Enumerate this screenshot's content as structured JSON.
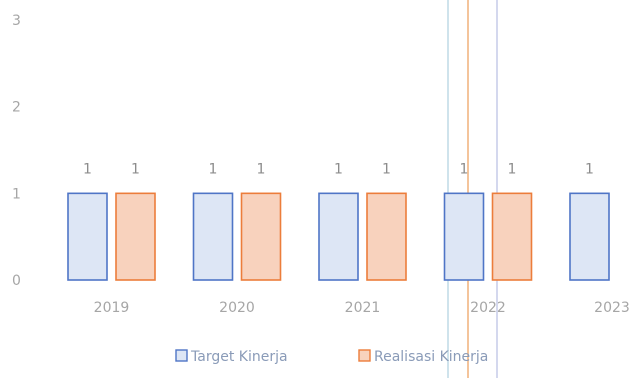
{
  "chart_data": {
    "type": "bar",
    "categories": [
      "2019",
      "2020",
      "2021",
      "2022",
      "2023"
    ],
    "series": [
      {
        "name": "Target Kinerja",
        "values": [
          1,
          1,
          1,
          1,
          1
        ],
        "color": "#4f75c6",
        "fill": "#dde6f5"
      },
      {
        "name": "Realisasi Kinerja",
        "values": [
          1,
          1,
          1,
          1,
          null
        ],
        "color": "#ec7d3b",
        "fill": "#f8d2bd"
      }
    ],
    "yticks": [
      "0",
      "1",
      "2",
      "3"
    ],
    "ylim": [
      0,
      3
    ],
    "grid": false,
    "legend": "bottom"
  }
}
